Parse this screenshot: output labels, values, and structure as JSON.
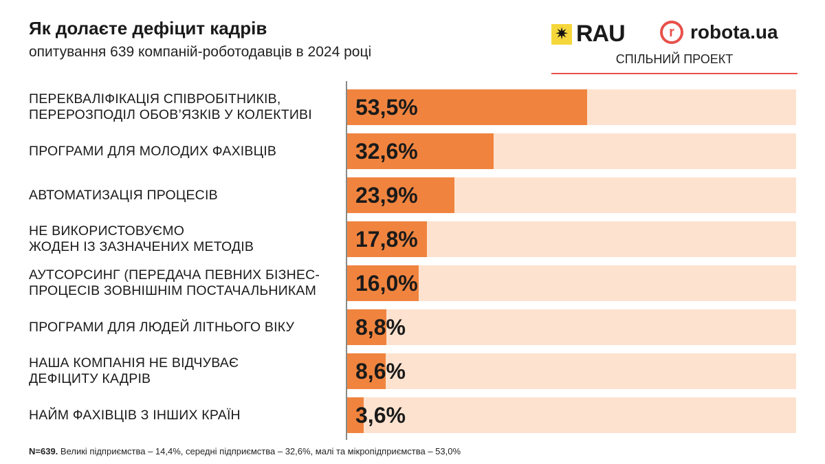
{
  "header": {
    "title": "Як долаєте дефіцит кадрів",
    "subtitle": "опитування 639 компаній-роботодавців в 2024 році"
  },
  "logos": {
    "rau": "RAU",
    "robota": "robota.ua",
    "robota_mark": "r",
    "joint": "СПІЛЬНИЙ ПРОЕКТ"
  },
  "colors": {
    "bar": "#f0843f",
    "track": "#fde3cf",
    "accent": "#e8504a"
  },
  "chart_data": {
    "type": "bar",
    "orientation": "horizontal",
    "title": "Як долаєте дефіцит кадрів",
    "xlim": [
      0,
      100
    ],
    "categories": [
      [
        "ПЕРЕКВАЛІФІКАЦІЯ СПІВРОБІТНИКІВ,",
        "ПЕРЕРОЗПОДІЛ ОБОВ’ЯЗКІВ У КОЛЕКТИВІ"
      ],
      [
        "ПРОГРАМИ ДЛЯ МОЛОДИХ ФАХІВЦІВ"
      ],
      [
        "АВТОМАТИЗАЦІЯ ПРОЦЕСІВ"
      ],
      [
        "НЕ ВИКОРИСТОВУЄМО",
        "ЖОДЕН ІЗ ЗАЗНАЧЕНИХ МЕТОДІВ"
      ],
      [
        "АУТСОРСИНГ (ПЕРЕДАЧА ПЕВНИХ БІЗНЕС-",
        "ПРОЦЕСІВ ЗОВНІШНІМ ПОСТАЧАЛЬНИКАМ"
      ],
      [
        "ПРОГРАМИ ДЛЯ ЛЮДЕЙ ЛІТНЬОГО ВІКУ"
      ],
      [
        "НАША КОМПАНІЯ НЕ ВІДЧУВАЄ",
        "ДЕФІЦИТУ КАДРІВ"
      ],
      [
        "НАЙМ ФАХІВЦІВ З ІНШИХ КРАЇН"
      ]
    ],
    "values": [
      53.5,
      32.6,
      23.9,
      17.8,
      16.0,
      8.8,
      8.6,
      3.6
    ],
    "value_labels": [
      "53,5%",
      "32,6%",
      "23,9%",
      "17,8%",
      "16,0%",
      "8,8%",
      "8,6%",
      "3,6%"
    ]
  },
  "footer": {
    "n": "N=639.",
    "text": " Великі підприємства – 14,4%, середні підприємства – 32,6%, малі та мікропідприємства – 53,0%"
  }
}
